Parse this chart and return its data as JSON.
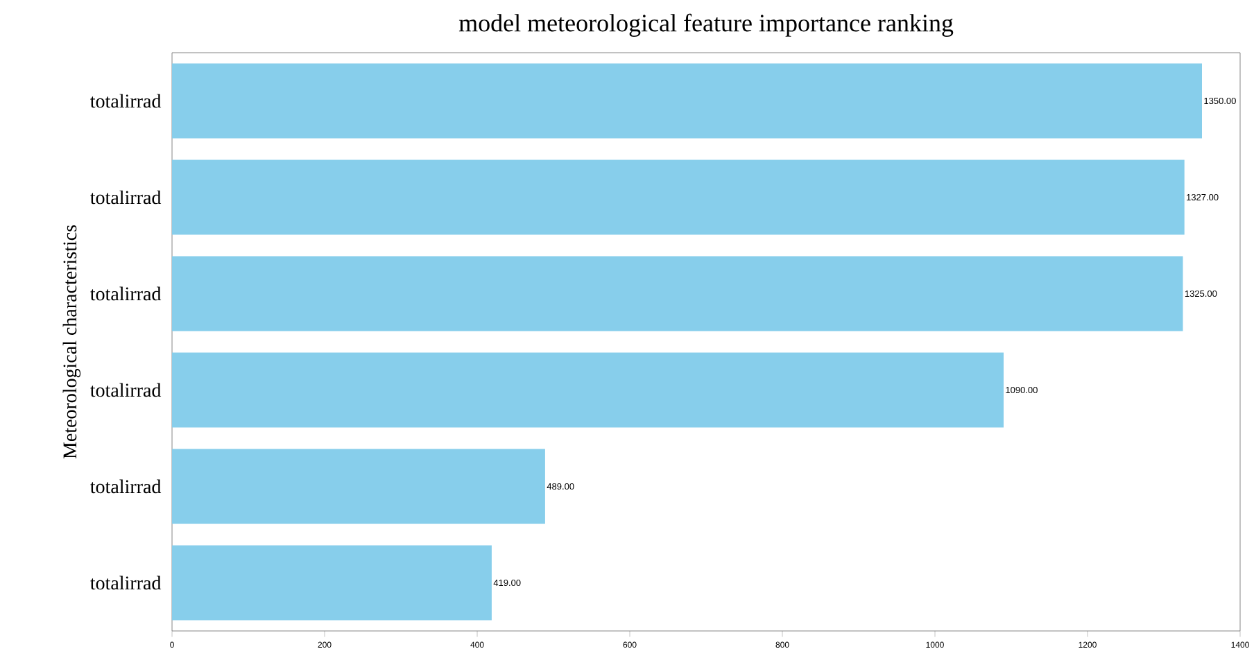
{
  "chart_data": {
    "type": "bar",
    "orientation": "horizontal",
    "title": "model meteorological feature importance ranking",
    "ylabel": "Meteorological characteristics",
    "categories": [
      "totalirrad",
      "totalirrad",
      "totalirrad",
      "totalirrad",
      "totalirrad",
      "totalirrad"
    ],
    "values": [
      1350,
      1327,
      1325,
      1090,
      489,
      419
    ],
    "value_labels": [
      "1350.00",
      "1327.00",
      "1325.00",
      "1090.00",
      "489.00",
      "419.00"
    ],
    "color": "#87ceeb",
    "xlim": [
      0,
      1400
    ],
    "xticks": [
      0,
      200,
      400,
      600,
      800,
      1000,
      1200,
      1400
    ],
    "grid": false
  }
}
